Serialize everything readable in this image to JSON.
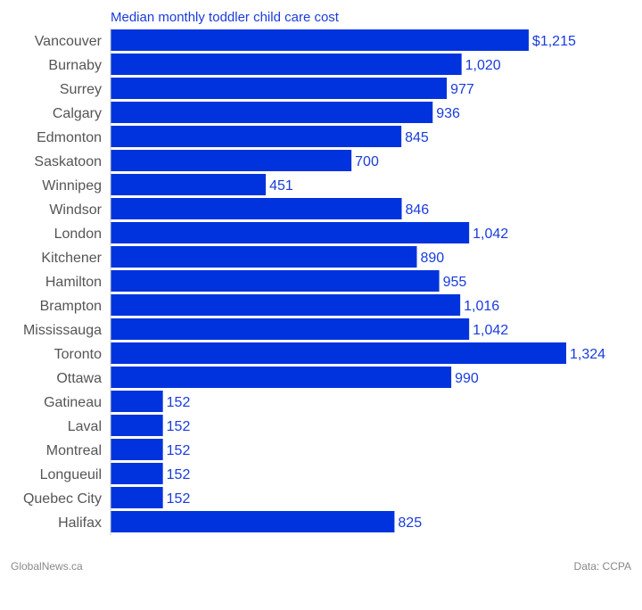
{
  "chart_data": {
    "type": "bar",
    "orientation": "horizontal",
    "title": "Median monthly toddler child care cost",
    "categories": [
      "Vancouver",
      "Burnaby",
      "Surrey",
      "Calgary",
      "Edmonton",
      "Saskatoon",
      "Winnipeg",
      "Windsor",
      "London",
      "Kitchener",
      "Hamilton",
      "Brampton",
      "Mississauga",
      "Toronto",
      "Ottawa",
      "Gatineau",
      "Laval",
      "Montreal",
      "Longueuil",
      "Quebec City",
      "Halifax"
    ],
    "values": [
      1215,
      1020,
      977,
      936,
      845,
      700,
      451,
      846,
      1042,
      890,
      955,
      1016,
      1042,
      1324,
      990,
      152,
      152,
      152,
      152,
      152,
      825
    ],
    "value_labels": [
      "$1,215",
      "1,020",
      "977",
      "936",
      "845",
      "700",
      "451",
      "846",
      "1,042",
      "890",
      "955",
      "1,016",
      "1,042",
      "1,324",
      "990",
      "152",
      "152",
      "152",
      "152",
      "152",
      "825"
    ],
    "xlim": [
      0,
      1324
    ],
    "bar_color": "#0033dd",
    "label_color": "#1a3cdb",
    "grid": false,
    "legend": "none"
  },
  "footer": {
    "source_left": "GlobalNews.ca",
    "source_right": "Data:  CCPA"
  }
}
